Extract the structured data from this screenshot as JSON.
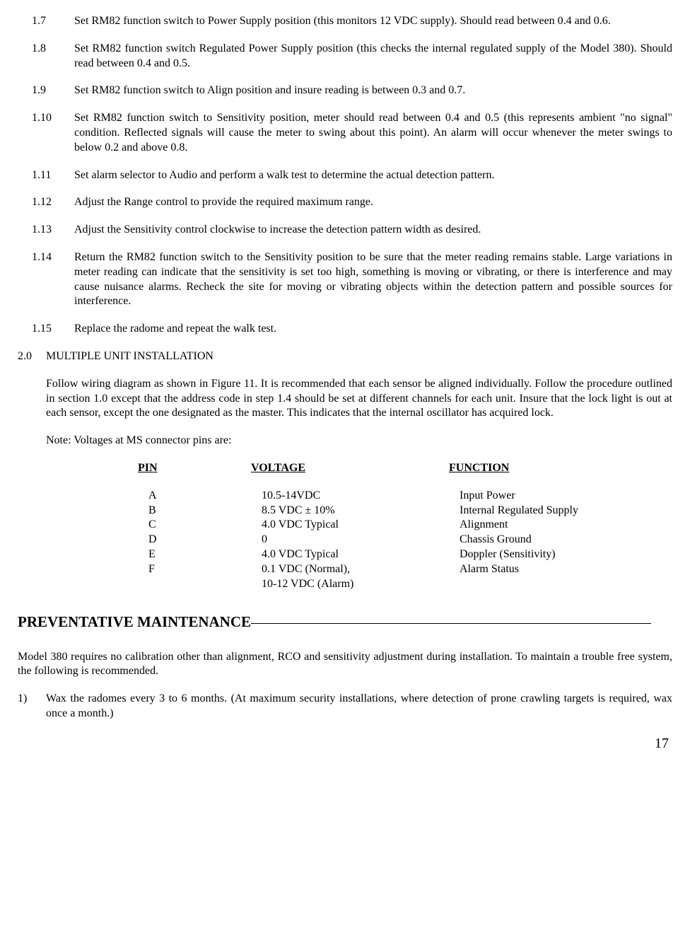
{
  "items": [
    {
      "num": "1.7",
      "text": "Set RM82 function switch to Power Supply position (this monitors 12 VDC supply). Should read between 0.4 and 0.6."
    },
    {
      "num": "1.8",
      "text": "Set RM82 function switch Regulated Power Supply position (this checks the internal regulated supply of the Model 380). Should read between 0.4 and 0.5."
    },
    {
      "num": "1.9",
      "text": "Set RM82 function switch to Align position and insure reading is between 0.3 and 0.7."
    },
    {
      "num": "1.10",
      "text": "Set RM82 function switch to Sensitivity position, meter should read between 0.4 and 0.5 (this represents ambient \"no signal\" condition. Reflected signals will cause the meter to swing about this point). An alarm will occur whenever the meter swings to below 0.2 and above 0.8."
    },
    {
      "num": "1.11",
      "text": "Set alarm selector to Audio and perform a walk test to determine the actual detection pattern."
    },
    {
      "num": "1.12",
      "text": "Adjust the Range control to provide the required maximum range."
    },
    {
      "num": "1.13",
      "text": "Adjust the Sensitivity control clockwise to increase the detection pattern width as desired."
    },
    {
      "num": "1.14",
      "text": "Return the RM82 function switch to the Sensitivity position to be sure that the meter reading remains stable. Large variations in meter reading can indicate that the sensitivity is set too high, something is moving or vibrating, or there is interference and may cause nuisance alarms. Recheck the site for moving or vibrating objects within the detection pattern and possible sources for interference."
    },
    {
      "num": "1.15",
      "text": " Replace the radome and repeat the walk test."
    }
  ],
  "section": {
    "num": "2.0",
    "title": "MULTIPLE UNIT INSTALLATION"
  },
  "section_para": "Follow wiring diagram as shown in Figure 11. It is recommended that each sensor be aligned individually. Follow the procedure outlined in section 1.0 except that the address code in step 1.4 should be set at different channels for each unit. Insure that the lock light is out at each sensor, except the one designated as the master. This indicates that the internal oscillator has acquired lock.",
  "note": "Note:  Voltages at MS connector pins are:",
  "table": {
    "headers": {
      "pin": "PIN",
      "voltage": "VOLTAGE",
      "function": "FUNCTION"
    },
    "rows": [
      {
        "pin": "A",
        "voltage": "10.5-14VDC",
        "function": "Input Power"
      },
      {
        "pin": "B",
        "voltage": "8.5 VDC ± 10%",
        "function": "Internal Regulated Supply"
      },
      {
        "pin": "C",
        "voltage": "4.0 VDC Typical",
        "function": "Alignment"
      },
      {
        "pin": "D",
        "voltage": "0",
        "function": "Chassis Ground"
      },
      {
        "pin": "E",
        "voltage": "4.0 VDC Typical",
        "function": "Doppler (Sensitivity)"
      },
      {
        "pin": "F",
        "voltage": "0.1 VDC (Normal),",
        "function": "Alarm Status"
      }
    ],
    "extra_voltage": "10-12 VDC (Alarm)"
  },
  "heading": "PREVENTATIVE MAINTENANCE",
  "maint_para": "Model 380 requires no calibration other than alignment, RCO and sensitivity adjustment during installation.  To maintain a trouble free system, the following is recommended.",
  "maint_items": [
    {
      "num": "1)",
      "text": "Wax the radomes every 3 to 6 months. (At maximum security installations, where detection of prone crawling targets is required, wax once a month.)"
    }
  ],
  "page_number": "17"
}
